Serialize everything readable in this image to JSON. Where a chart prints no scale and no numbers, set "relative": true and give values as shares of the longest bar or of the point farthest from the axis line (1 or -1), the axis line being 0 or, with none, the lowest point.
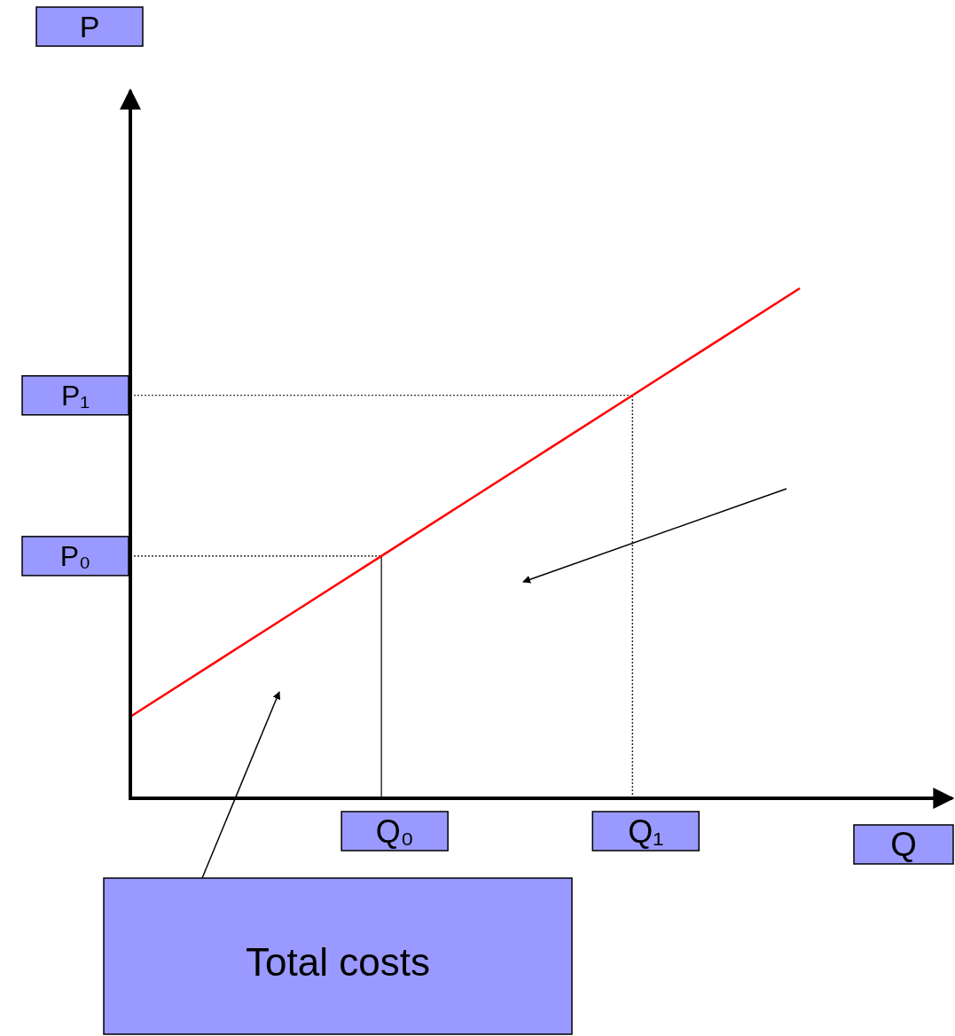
{
  "chart_data": {
    "type": "line",
    "relative": true,
    "xlabel": "Q",
    "categories": [
      null,
      null,
      null,
      "Q₀",
      null,
      null,
      "Q₁",
      null,
      null
    ],
    "series": [
      {
        "color": "#ff0000",
        "values": [
          0.16,
          0.265,
          0.37,
          0.475,
          0.58,
          0.685,
          0.79,
          0.895,
          1
        ]
      }
    ],
    "ref_lines": [
      {
        "axis": "y",
        "value": 0.475,
        "label": "P₀",
        "line_style": "dotted",
        "color": "#000000"
      },
      {
        "axis": "y",
        "value": 0.79,
        "label": "P₁",
        "line_style": "dotted",
        "color": "#000000"
      },
      {
        "axis": "x",
        "value": "Q₀",
        "line_style": "solid",
        "color": "#000000"
      },
      {
        "axis": "x",
        "value": "Q₁",
        "line_style": "dotted",
        "color": "#000000"
      }
    ],
    "annotations": [
      "Total costs",
      "P"
    ]
  }
}
